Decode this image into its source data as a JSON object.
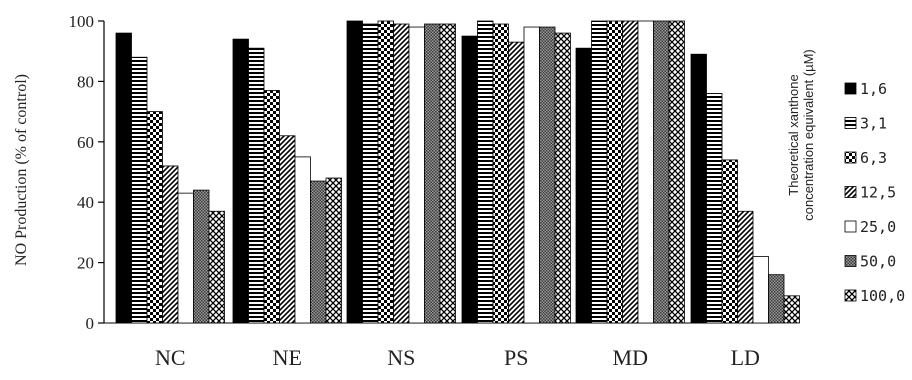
{
  "chart_data": {
    "type": "bar",
    "ylabel": "NO Production (% of control)",
    "ylim": [
      0,
      100
    ],
    "yticks": [
      0,
      20,
      40,
      60,
      80,
      100
    ],
    "grid": false,
    "legend_title": "Theoretical xanthone concentration equivalent (µM)",
    "legend_title_lines": [
      "Theoretical xanthone",
      "concentration equivalent (µM)"
    ],
    "legend_position": "right",
    "categories": [
      "NC",
      "NE",
      "NS",
      "PS",
      "MD",
      "LD"
    ],
    "series": [
      {
        "name": "1,6",
        "pattern": "solid",
        "values": [
          96,
          94,
          100,
          95,
          91,
          89
        ]
      },
      {
        "name": "3,1",
        "pattern": "hstripe",
        "values": [
          88,
          91,
          99,
          100,
          100,
          76
        ]
      },
      {
        "name": "6,3",
        "pattern": "checker",
        "values": [
          70,
          77,
          100,
          99,
          100,
          54
        ]
      },
      {
        "name": "12,5",
        "pattern": "diag",
        "values": [
          52,
          62,
          99,
          93,
          100,
          37
        ]
      },
      {
        "name": "25,0",
        "pattern": "white",
        "values": [
          43,
          55,
          98,
          98,
          100,
          22
        ]
      },
      {
        "name": "50,0",
        "pattern": "dots",
        "values": [
          44,
          47,
          99,
          98,
          100,
          16
        ]
      },
      {
        "name": "100,0",
        "pattern": "weave",
        "values": [
          37,
          48,
          99,
          96,
          100,
          9
        ]
      }
    ]
  }
}
